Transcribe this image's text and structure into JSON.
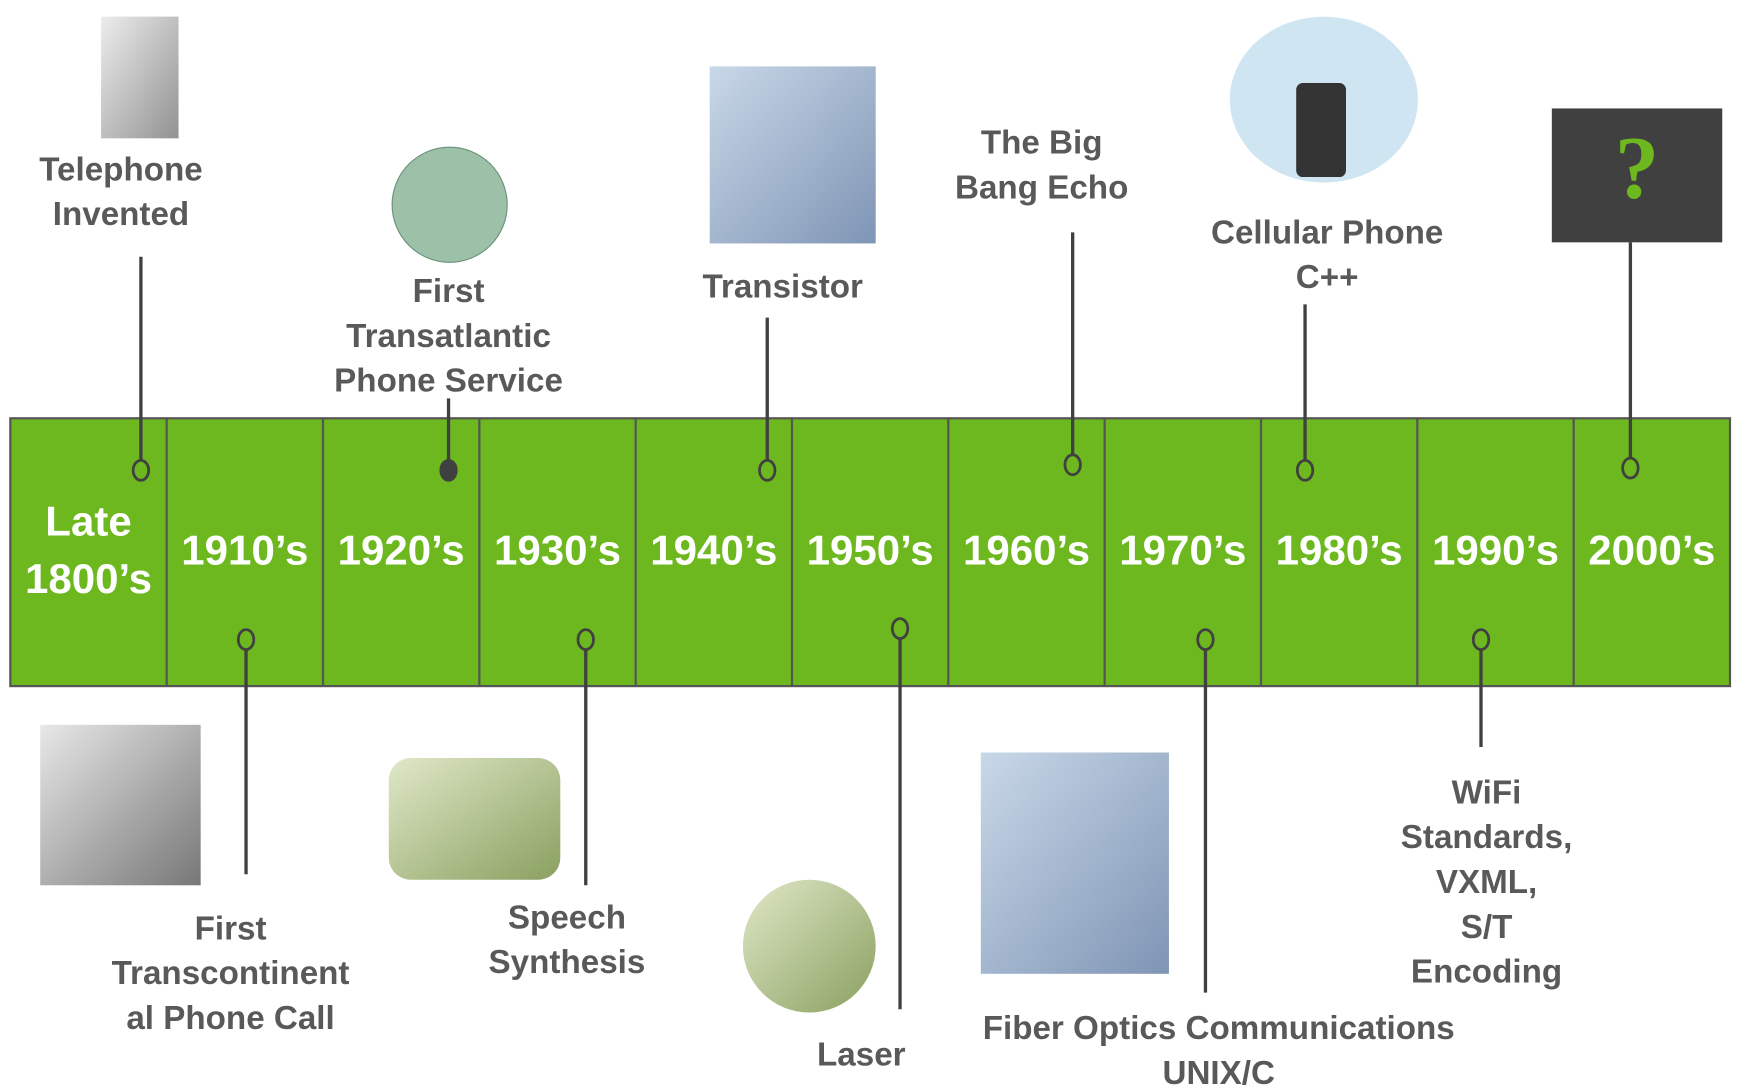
{
  "decades": [
    [
      "Late",
      "1800’s"
    ],
    [
      "1910’s"
    ],
    [
      "1920’s"
    ],
    [
      "1930’s"
    ],
    [
      "1940’s"
    ],
    [
      "1950’s"
    ],
    [
      "1960’s"
    ],
    [
      "1970’s"
    ],
    [
      "1980’s"
    ],
    [
      "1990’s"
    ],
    [
      "2000’s"
    ]
  ],
  "events_above": [
    {
      "lines": [
        "Telephone",
        "Invented"
      ]
    },
    {
      "lines": [
        "First",
        "Transatlantic",
        "Phone Service"
      ]
    },
    {
      "lines": [
        "Transistor"
      ]
    },
    {
      "lines": [
        "The Big",
        "Bang Echo"
      ]
    },
    {
      "lines": [
        "Cellular Phone",
        "C++"
      ]
    },
    {
      "lines": [
        "?"
      ]
    }
  ],
  "events_below": [
    {
      "lines": [
        "First",
        "Transcontinent",
        "al Phone Call"
      ]
    },
    {
      "lines": [
        "Speech",
        "Synthesis"
      ]
    },
    {
      "lines": [
        "Laser"
      ]
    },
    {
      "lines": [
        "Fiber Optics Communications",
        "UNIX/C"
      ]
    },
    {
      "lines": [
        "WiFi",
        "Standards,",
        "VXML,",
        "S/T",
        "Encoding"
      ]
    }
  ]
}
